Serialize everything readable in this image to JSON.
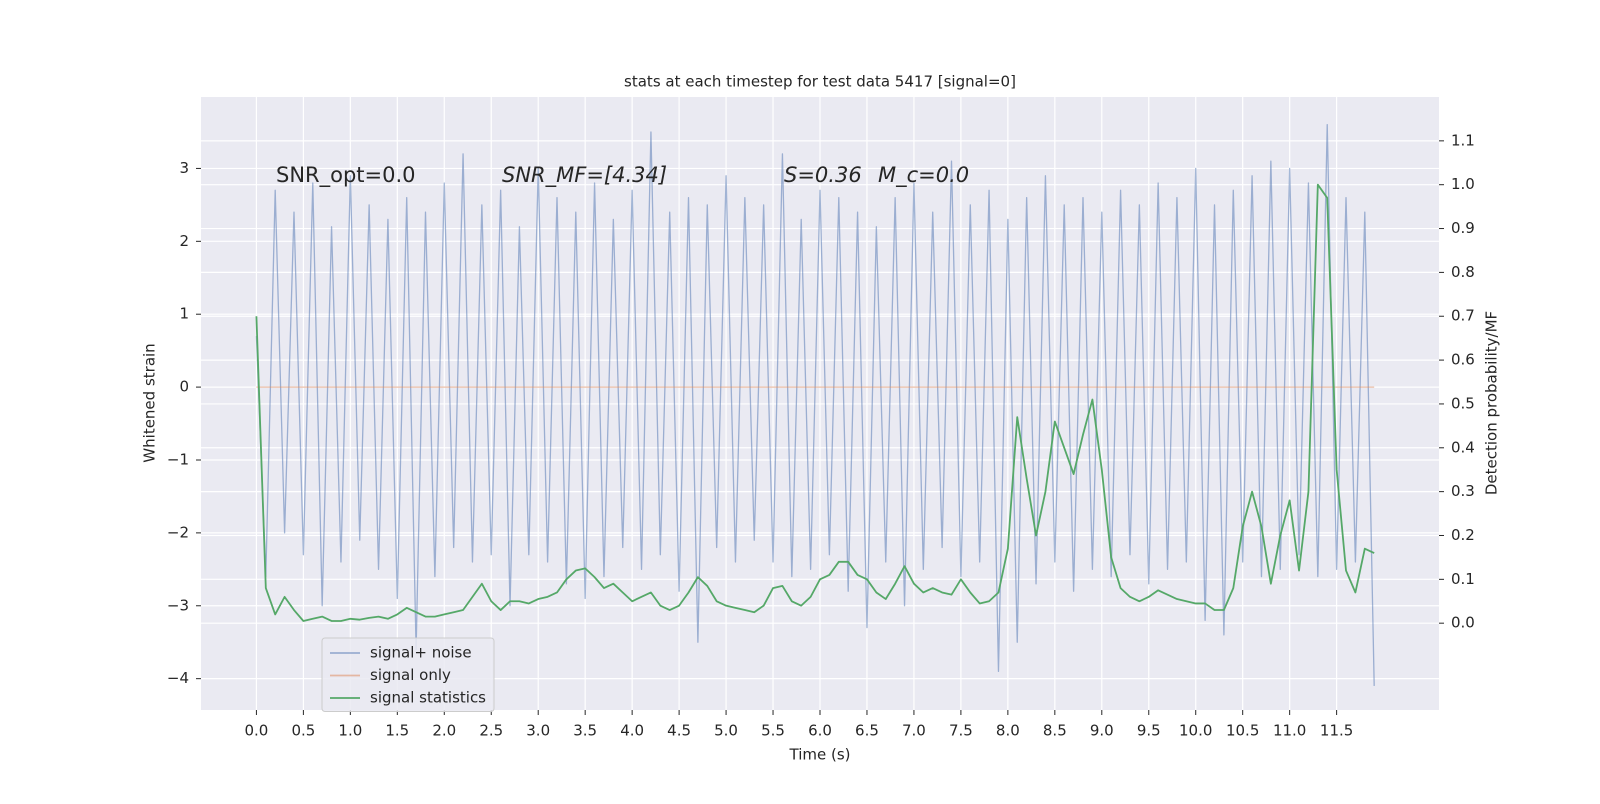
{
  "chart_data": {
    "type": "line",
    "title": "stats at each timestep for test data 5417 [signal=0]",
    "xlabel": "Time (s)",
    "ylabel": "Whitened strain",
    "y2label": "Detection probability/MF",
    "annotations": [
      "SNR_opt=0.0",
      "SNR_MF=[4.34]",
      "S=0.36",
      "M_c=0.0"
    ],
    "grid": true,
    "legend": "lower left",
    "xlim": [
      -0.59,
      12.59
    ],
    "ylim": [
      -4.43,
      3.98
    ],
    "y2lim": [
      -0.198,
      1.2
    ],
    "xticks": [
      {
        "value": 0,
        "label": "0.0"
      },
      0.5,
      {
        "value": 1,
        "label": "1.0"
      },
      1.5,
      {
        "value": 2,
        "label": "2.0"
      },
      2.5,
      {
        "value": 3,
        "label": "3.0"
      },
      3.5,
      {
        "value": 4,
        "label": "4.0"
      },
      4.5,
      {
        "value": 5,
        "label": "5.0"
      },
      5.5,
      {
        "value": 6,
        "label": "6.0"
      },
      6.5,
      {
        "value": 7,
        "label": "7.0"
      },
      7.5,
      {
        "value": 8,
        "label": "8.0"
      },
      8.5,
      {
        "value": 9,
        "label": "9.0"
      },
      9.5,
      {
        "value": 10,
        "label": "10.0"
      },
      10.5,
      {
        "value": 11,
        "label": "11.0"
      },
      11.5
    ],
    "yticks": [
      {
        "value": -4,
        "label": "−4"
      },
      {
        "value": -3,
        "label": "−3"
      },
      {
        "value": -2,
        "label": "−2"
      },
      {
        "value": -1,
        "label": "−1"
      },
      0,
      1,
      2,
      3
    ],
    "y2ticks": [
      {
        "value": 0,
        "label": "0.0"
      },
      0.1,
      0.2,
      0.3,
      0.4,
      0.5,
      0.6,
      0.7,
      0.8,
      0.9,
      {
        "value": 1,
        "label": "1.0"
      },
      1.1
    ],
    "x": [
      0.0,
      0.1,
      0.2,
      0.3,
      0.4,
      0.5,
      0.6,
      0.7,
      0.8,
      0.9,
      1.0,
      1.1,
      1.2,
      1.3,
      1.4,
      1.5,
      1.6,
      1.7,
      1.8,
      1.9,
      2.0,
      2.1,
      2.2,
      2.3,
      2.4,
      2.5,
      2.6,
      2.7,
      2.8,
      2.9,
      3.0,
      3.1,
      3.2,
      3.3,
      3.4,
      3.5,
      3.6,
      3.7,
      3.8,
      3.9,
      4.0,
      4.1,
      4.2,
      4.3,
      4.4,
      4.5,
      4.6,
      4.7,
      4.8,
      4.9,
      5.0,
      5.1,
      5.2,
      5.3,
      5.4,
      5.5,
      5.6,
      5.7,
      5.8,
      5.9,
      6.0,
      6.1,
      6.2,
      6.3,
      6.4,
      6.5,
      6.6,
      6.7,
      6.8,
      6.9,
      7.0,
      7.1,
      7.2,
      7.3,
      7.4,
      7.5,
      7.6,
      7.7,
      7.8,
      7.9,
      8.0,
      8.1,
      8.2,
      8.3,
      8.4,
      8.5,
      8.6,
      8.7,
      8.8,
      8.9,
      9.0,
      9.1,
      9.2,
      9.3,
      9.4,
      9.5,
      9.6,
      9.7,
      9.8,
      9.9,
      10.0,
      10.1,
      10.2,
      10.3,
      10.4,
      10.5,
      10.6,
      10.7,
      10.8,
      10.9,
      11.0,
      11.1,
      11.2,
      11.3,
      11.4,
      11.5,
      11.6,
      11.7,
      11.8,
      11.9
    ],
    "series": [
      {
        "name": "signal+ noise",
        "color": "#4c72b0",
        "values": [
          0.7,
          -2.6,
          2.7,
          -2.0,
          2.4,
          -2.3,
          2.8,
          -3.0,
          2.2,
          -2.4,
          2.9,
          -2.1,
          2.5,
          -2.5,
          2.3,
          -2.9,
          2.6,
          -3.6,
          2.4,
          -2.6,
          2.8,
          -2.2,
          3.2,
          -2.4,
          2.5,
          -2.3,
          2.7,
          -3.0,
          2.2,
          -2.3,
          3.0,
          -2.4,
          2.6,
          -2.7,
          2.4,
          -2.9,
          2.8,
          -2.6,
          2.3,
          -2.2,
          2.7,
          -2.5,
          3.5,
          -2.3,
          2.4,
          -2.8,
          2.6,
          -3.5,
          2.5,
          -2.2,
          2.9,
          -2.4,
          2.6,
          -2.1,
          2.5,
          -2.4,
          3.2,
          -2.6,
          2.3,
          -2.5,
          2.7,
          -2.3,
          2.6,
          -2.8,
          2.4,
          -3.3,
          2.2,
          -2.4,
          2.6,
          -3.0,
          2.8,
          -2.5,
          2.4,
          -2.2,
          3.1,
          -2.6,
          2.5,
          -2.4,
          2.7,
          -3.9,
          2.3,
          -3.5,
          2.6,
          -2.7,
          2.9,
          -2.4,
          2.5,
          -2.8,
          2.6,
          -2.5,
          2.4,
          -2.6,
          2.7,
          -2.3,
          2.5,
          -2.7,
          2.8,
          -2.5,
          2.6,
          -2.4,
          3.0,
          -3.2,
          2.5,
          -3.4,
          2.7,
          -2.4,
          2.9,
          -2.6,
          3.1,
          -2.5,
          3.0,
          -2.3,
          2.8,
          -2.6,
          3.6,
          -2.5,
          2.6,
          -2.4,
          2.4,
          -4.1
        ]
      },
      {
        "name": "signal only",
        "color": "#dd8452",
        "values": [
          0,
          0,
          0,
          0,
          0,
          0,
          0,
          0,
          0,
          0,
          0,
          0,
          0,
          0,
          0,
          0,
          0,
          0,
          0,
          0,
          0,
          0,
          0,
          0,
          0,
          0,
          0,
          0,
          0,
          0,
          0,
          0,
          0,
          0,
          0,
          0,
          0,
          0,
          0,
          0,
          0,
          0,
          0,
          0,
          0,
          0,
          0,
          0,
          0,
          0,
          0,
          0,
          0,
          0,
          0,
          0,
          0,
          0,
          0,
          0,
          0,
          0,
          0,
          0,
          0,
          0,
          0,
          0,
          0,
          0,
          0,
          0,
          0,
          0,
          0,
          0,
          0,
          0,
          0,
          0,
          0,
          0,
          0,
          0,
          0,
          0,
          0,
          0,
          0,
          0,
          0,
          0,
          0,
          0,
          0,
          0,
          0,
          0,
          0,
          0,
          0,
          0,
          0,
          0,
          0,
          0,
          0,
          0,
          0,
          0,
          0,
          0,
          0,
          0,
          0,
          0,
          0,
          0,
          0,
          0
        ]
      },
      {
        "name": "signal statistics",
        "color": "#55a868",
        "axis": "y2",
        "values": [
          0.7,
          0.08,
          0.02,
          0.06,
          0.03,
          0.005,
          0.01,
          0.015,
          0.005,
          0.005,
          0.01,
          0.008,
          0.012,
          0.015,
          0.01,
          0.02,
          0.035,
          0.025,
          0.015,
          0.015,
          0.02,
          0.025,
          0.03,
          0.06,
          0.09,
          0.05,
          0.03,
          0.05,
          0.05,
          0.045,
          0.055,
          0.06,
          0.07,
          0.1,
          0.12,
          0.125,
          0.105,
          0.08,
          0.09,
          0.07,
          0.05,
          0.06,
          0.07,
          0.04,
          0.03,
          0.04,
          0.07,
          0.105,
          0.085,
          0.05,
          0.04,
          0.035,
          0.03,
          0.025,
          0.04,
          0.08,
          0.085,
          0.05,
          0.04,
          0.06,
          0.1,
          0.11,
          0.14,
          0.14,
          0.11,
          0.1,
          0.07,
          0.055,
          0.09,
          0.13,
          0.09,
          0.07,
          0.08,
          0.07,
          0.065,
          0.1,
          0.07,
          0.045,
          0.05,
          0.07,
          0.17,
          0.47,
          0.33,
          0.2,
          0.3,
          0.46,
          0.4,
          0.34,
          0.43,
          0.51,
          0.35,
          0.15,
          0.08,
          0.06,
          0.05,
          0.06,
          0.075,
          0.065,
          0.055,
          0.05,
          0.045,
          0.045,
          0.03,
          0.03,
          0.08,
          0.22,
          0.3,
          0.22,
          0.09,
          0.2,
          0.28,
          0.12,
          0.3,
          1.0,
          0.97,
          0.35,
          0.12,
          0.07,
          0.17,
          0.16
        ]
      }
    ]
  }
}
